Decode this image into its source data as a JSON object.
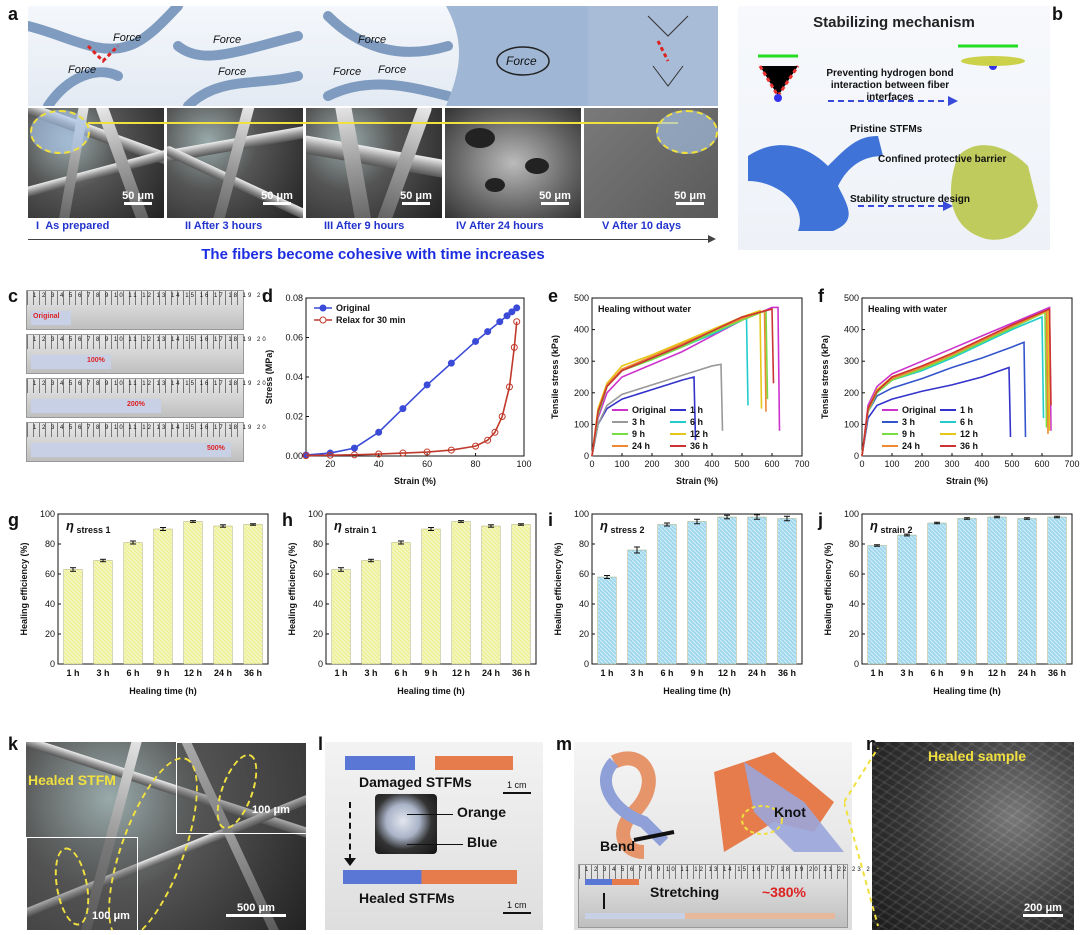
{
  "panels": {
    "a": {
      "letter": "a",
      "force_labels": [
        "Force",
        "Force",
        "Force",
        "Force",
        "Force",
        "Force",
        "Force",
        "Force"
      ],
      "scale": "50 μm",
      "stages": [
        {
          "roman": "I",
          "text": "As prepared"
        },
        {
          "roman": "II",
          "text": "After 3 hours"
        },
        {
          "roman": "III",
          "text": "After 9 hours"
        },
        {
          "roman": "IV",
          "text": "After 24 hours"
        },
        {
          "roman": "V",
          "text": "After 10 days"
        }
      ],
      "caption": "The fibers become cohesive with time increases"
    },
    "b": {
      "letter": "b",
      "title": "Stabilizing mechanism",
      "arrow1": "Preventing hydrogen bond interaction between fiber interfaces",
      "label_pristine": "Pristine STFMs",
      "label_barrier": "Confined protective barrier",
      "label_design": "Stability structure design"
    },
    "c": {
      "letter": "c",
      "labels": [
        "Original",
        "100%",
        "200%",
        "500%"
      ]
    },
    "d": {
      "letter": "d"
    },
    "e": {
      "letter": "e"
    },
    "f": {
      "letter": "f"
    },
    "g": {
      "letter": "g"
    },
    "h": {
      "letter": "h"
    },
    "i": {
      "letter": "i"
    },
    "j": {
      "letter": "j"
    },
    "k": {
      "letter": "k",
      "label": "Healed STFM",
      "scale_inset1": "100 μm",
      "scale_inset2": "100 μm",
      "scale_main": "500 μm"
    },
    "l": {
      "letter": "l",
      "damaged": "Damaged STFMs",
      "scale1": "1 cm",
      "orange": "Orange",
      "blue": "Blue",
      "healed": "Healed STFMs",
      "scale2": "1 cm"
    },
    "m": {
      "letter": "m",
      "bend": "Bend",
      "knot": "Knot",
      "stretching": "Stretching",
      "stretch_value": "~380%"
    },
    "n": {
      "letter": "n",
      "label": "Healed sample",
      "scale": "200 μm"
    }
  },
  "chart_data": [
    {
      "id": "d",
      "type": "line",
      "title": "",
      "xlabel": "Strain (%)",
      "ylabel": "Stress (MPa)",
      "xlim": [
        10,
        100
      ],
      "ylim": [
        0,
        0.08
      ],
      "xticks": [
        20,
        40,
        60,
        80,
        100
      ],
      "yticks": [
        0.0,
        0.02,
        0.04,
        0.06,
        0.08
      ],
      "ytick_labels": [
        "0.00",
        "0.02",
        "0.04",
        "0.06",
        "0.08"
      ],
      "legend_placement": "top-left",
      "series": [
        {
          "name": "Original",
          "color": "#3b4bd8",
          "marker": "filled-circle",
          "x": [
            10,
            20,
            30,
            40,
            50,
            60,
            70,
            80,
            85,
            90,
            93,
            95,
            97
          ],
          "y": [
            0.0005,
            0.0015,
            0.004,
            0.012,
            0.024,
            0.036,
            0.047,
            0.058,
            0.063,
            0.068,
            0.071,
            0.073,
            0.075
          ]
        },
        {
          "name": "Relax for 30 min",
          "color": "#c0392b",
          "marker": "open-circle",
          "x": [
            10,
            20,
            30,
            40,
            50,
            60,
            70,
            80,
            85,
            88,
            91,
            94,
            96,
            97
          ],
          "y": [
            0.0002,
            0.0004,
            0.0006,
            0.001,
            0.0015,
            0.002,
            0.003,
            0.005,
            0.008,
            0.012,
            0.02,
            0.035,
            0.055,
            0.068
          ]
        }
      ]
    },
    {
      "id": "e",
      "type": "line",
      "title": "",
      "xlabel": "Strain (%)",
      "ylabel": "Tensile stress (kPa)",
      "annotation": "Healing without water",
      "xlim": [
        0,
        700
      ],
      "ylim": [
        0,
        500
      ],
      "xticks": [
        0,
        100,
        200,
        300,
        400,
        500,
        600,
        700
      ],
      "yticks": [
        0,
        100,
        200,
        300,
        400,
        500
      ],
      "legend_placement": "bottom-center",
      "series": [
        {
          "name": "Original",
          "color": "#cc33cc",
          "x": [
            0,
            20,
            50,
            100,
            200,
            300,
            400,
            500,
            600,
            620,
            625
          ],
          "y": [
            0,
            120,
            200,
            250,
            290,
            330,
            380,
            430,
            470,
            470,
            80
          ]
        },
        {
          "name": "1 h",
          "color": "#3333cc",
          "x": [
            0,
            20,
            50,
            100,
            200,
            300,
            340,
            345
          ],
          "y": [
            0,
            100,
            150,
            180,
            210,
            240,
            250,
            50
          ]
        },
        {
          "name": "3 h",
          "color": "#999999",
          "x": [
            0,
            20,
            50,
            100,
            200,
            300,
            400,
            430,
            435
          ],
          "y": [
            0,
            100,
            160,
            195,
            225,
            255,
            285,
            290,
            80
          ]
        },
        {
          "name": "6 h",
          "color": "#22cccc",
          "x": [
            0,
            20,
            50,
            100,
            200,
            300,
            400,
            500,
            515,
            520
          ],
          "y": [
            0,
            130,
            220,
            270,
            310,
            345,
            385,
            430,
            440,
            160
          ]
        },
        {
          "name": "9 h",
          "color": "#77dd44",
          "x": [
            0,
            20,
            50,
            100,
            200,
            300,
            400,
            500,
            580,
            585
          ],
          "y": [
            0,
            130,
            220,
            270,
            305,
            345,
            390,
            430,
            460,
            180
          ]
        },
        {
          "name": "12 h",
          "color": "#e6c619",
          "x": [
            0,
            20,
            50,
            100,
            200,
            300,
            400,
            500,
            560,
            565
          ],
          "y": [
            0,
            150,
            230,
            285,
            320,
            360,
            400,
            440,
            460,
            150
          ]
        },
        {
          "name": "24 h",
          "color": "#ee8833",
          "x": [
            0,
            20,
            50,
            100,
            200,
            300,
            400,
            500,
            575,
            580
          ],
          "y": [
            0,
            140,
            225,
            275,
            315,
            355,
            395,
            435,
            460,
            140
          ]
        },
        {
          "name": "36 h",
          "color": "#cc3333",
          "x": [
            0,
            20,
            50,
            100,
            200,
            300,
            400,
            500,
            600,
            605
          ],
          "y": [
            0,
            140,
            220,
            270,
            310,
            350,
            395,
            440,
            465,
            230
          ]
        }
      ]
    },
    {
      "id": "f",
      "type": "line",
      "title": "",
      "xlabel": "Strain (%)",
      "ylabel": "Tensile stress (kPa)",
      "annotation": "Healing with water",
      "xlim": [
        0,
        700
      ],
      "ylim": [
        0,
        500
      ],
      "xticks": [
        0,
        100,
        200,
        300,
        400,
        500,
        600,
        700
      ],
      "yticks": [
        0,
        100,
        200,
        300,
        400,
        500
      ],
      "legend_placement": "bottom-center",
      "series": [
        {
          "name": "Original",
          "color": "#cc33cc",
          "x": [
            0,
            20,
            50,
            100,
            200,
            300,
            400,
            500,
            600,
            625,
            630
          ],
          "y": [
            0,
            160,
            220,
            260,
            300,
            340,
            380,
            420,
            460,
            470,
            80
          ]
        },
        {
          "name": "1 h",
          "color": "#3333cc",
          "x": [
            0,
            20,
            50,
            100,
            200,
            300,
            400,
            490,
            495
          ],
          "y": [
            0,
            120,
            160,
            180,
            205,
            225,
            250,
            280,
            60
          ]
        },
        {
          "name": "3 h",
          "color": "#3355cc",
          "x": [
            0,
            20,
            50,
            100,
            200,
            300,
            400,
            500,
            540,
            545
          ],
          "y": [
            0,
            140,
            190,
            215,
            245,
            280,
            310,
            345,
            360,
            60
          ]
        },
        {
          "name": "6 h",
          "color": "#22cccc",
          "x": [
            0,
            20,
            50,
            100,
            200,
            300,
            400,
            500,
            600,
            605
          ],
          "y": [
            0,
            140,
            200,
            240,
            270,
            310,
            355,
            400,
            440,
            120
          ]
        },
        {
          "name": "9 h",
          "color": "#77dd44",
          "x": [
            0,
            20,
            50,
            100,
            200,
            300,
            400,
            500,
            610,
            615
          ],
          "y": [
            0,
            140,
            200,
            240,
            275,
            315,
            360,
            405,
            455,
            90
          ]
        },
        {
          "name": "12 h",
          "color": "#e6c619",
          "x": [
            0,
            20,
            50,
            100,
            200,
            300,
            400,
            500,
            620,
            625
          ],
          "y": [
            0,
            150,
            210,
            250,
            285,
            325,
            370,
            410,
            460,
            80
          ]
        },
        {
          "name": "24 h",
          "color": "#ee8833",
          "x": [
            0,
            20,
            50,
            100,
            200,
            300,
            400,
            500,
            615,
            620
          ],
          "y": [
            0,
            145,
            205,
            245,
            280,
            320,
            365,
            410,
            460,
            70
          ]
        },
        {
          "name": "36 h",
          "color": "#cc3333",
          "x": [
            0,
            20,
            50,
            100,
            200,
            300,
            400,
            500,
            625,
            630
          ],
          "y": [
            0,
            150,
            205,
            250,
            285,
            325,
            370,
            415,
            465,
            160
          ]
        }
      ]
    },
    {
      "id": "g",
      "type": "bar",
      "annotation": "η stress 1",
      "xlabel": "Healing time (h)",
      "ylabel": "Healing efficiency (%)",
      "categories": [
        "1 h",
        "3 h",
        "6 h",
        "9 h",
        "12 h",
        "24 h",
        "36 h"
      ],
      "values": [
        63,
        69,
        81,
        90,
        95,
        92,
        93
      ],
      "errors": [
        1.2,
        0.8,
        1.0,
        1.0,
        0.6,
        0.8,
        0.5
      ],
      "ylim": [
        0,
        100
      ],
      "yticks": [
        0,
        20,
        40,
        60,
        80,
        100
      ],
      "color": "#eef09a"
    },
    {
      "id": "h",
      "type": "bar",
      "annotation": "η strain 1",
      "xlabel": "Healing time (h)",
      "ylabel": "Healing efficiency (%)",
      "categories": [
        "1 h",
        "3 h",
        "6 h",
        "9 h",
        "12 h",
        "24 h",
        "36 h"
      ],
      "values": [
        63,
        69,
        81,
        90,
        95,
        92,
        93
      ],
      "errors": [
        1.2,
        0.8,
        1.0,
        1.0,
        0.6,
        0.8,
        0.5
      ],
      "ylim": [
        0,
        100
      ],
      "yticks": [
        0,
        20,
        40,
        60,
        80,
        100
      ],
      "color": "#eef09a"
    },
    {
      "id": "i",
      "type": "bar",
      "annotation": "η stress 2",
      "xlabel": "Healing time (h)",
      "ylabel": "Healing efficiency (%)",
      "categories": [
        "1 h",
        "3 h",
        "6 h",
        "9 h",
        "12 h",
        "24 h",
        "36 h"
      ],
      "values": [
        58,
        76,
        93,
        95,
        98,
        98,
        97
      ],
      "errors": [
        1.0,
        2.0,
        1.0,
        1.5,
        1.2,
        1.5,
        1.5
      ],
      "ylim": [
        0,
        100
      ],
      "yticks": [
        0,
        20,
        40,
        60,
        80,
        100
      ],
      "color": "#9fd7ee"
    },
    {
      "id": "j",
      "type": "bar",
      "annotation": "η strain 2",
      "xlabel": "Healing time (h)",
      "ylabel": "Healing efficiency (%)",
      "categories": [
        "1 h",
        "3 h",
        "6 h",
        "9 h",
        "12 h",
        "24 h",
        "36 h"
      ],
      "values": [
        79,
        86,
        94,
        97,
        98,
        97,
        98
      ],
      "errors": [
        0.5,
        0.6,
        0.5,
        0.5,
        0.5,
        0.5,
        0.5
      ],
      "ylim": [
        0,
        100
      ],
      "yticks": [
        0,
        20,
        40,
        60,
        80,
        100
      ],
      "color": "#9fd7ee"
    }
  ]
}
